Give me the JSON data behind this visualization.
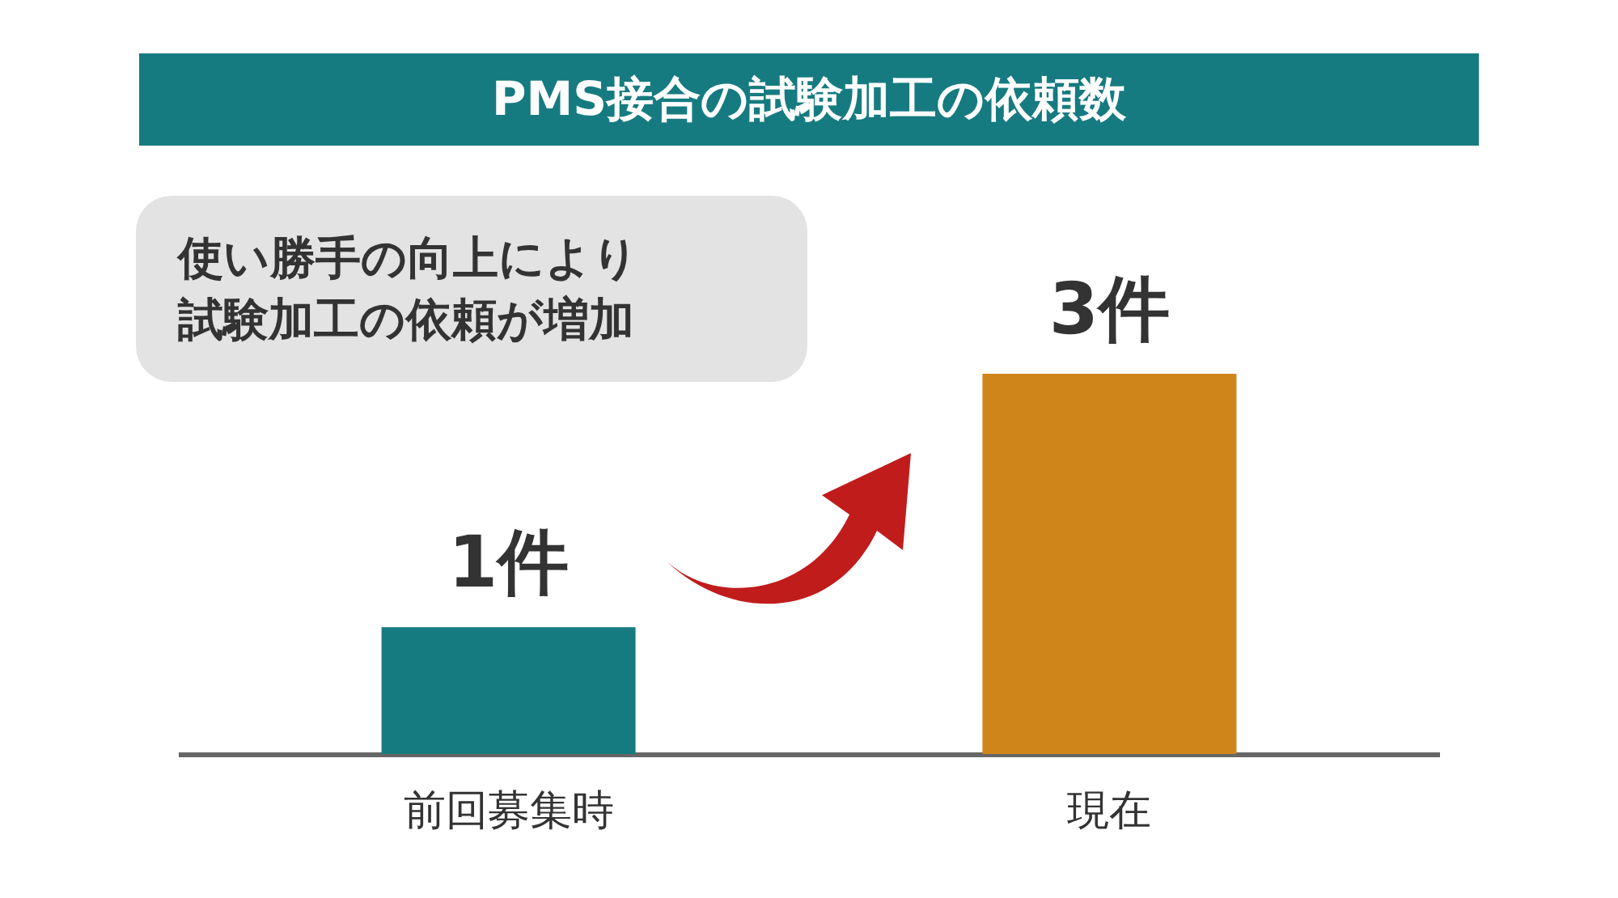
{
  "chart_data": {
    "type": "bar",
    "title": "PMS接合の試験加工の依頼数",
    "annotations": [
      "使い勝手の向上により試験加工の依頼が増加"
    ],
    "categories": [
      "前回募集時",
      "現在"
    ],
    "values": [
      1,
      3
    ],
    "colors": [
      "#167b80",
      "#d0851a"
    ],
    "value_labels": [
      "1件",
      "3件"
    ]
  }
}
